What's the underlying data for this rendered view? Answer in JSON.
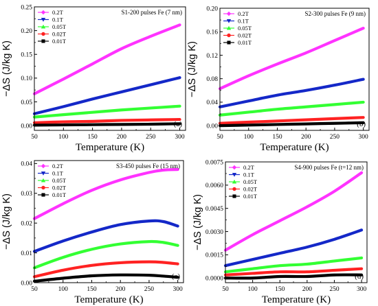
{
  "colors": {
    "0.2T": "#ff33ff",
    "0.1T": "#1428c8",
    "0.05T": "#33ff33",
    "0.02T": "#ff2222",
    "0.01T": "#000000"
  },
  "markers": {
    "0.2T": "diamond",
    "0.1T": "triangle-down",
    "0.05T": "triangle-up",
    "0.02T": "circle",
    "0.01T": "square"
  },
  "chart_data": [
    {
      "type": "line",
      "panel": "(a)",
      "annotation": "S1-200 pulses Fe (7 nm)",
      "xlabel": "Temperature (K)",
      "ylabel": "−ΔS (J/kg K)",
      "xlim": [
        50,
        310
      ],
      "ylim": [
        -0.01,
        0.25
      ],
      "xticks": [
        50,
        100,
        150,
        200,
        250,
        300
      ],
      "yticks": [
        0.0,
        0.05,
        0.1,
        0.15,
        0.2,
        0.25
      ],
      "ytick_labels": [
        "0.00",
        "0.05",
        "0.10",
        "0.15",
        "0.20",
        "0.25"
      ],
      "legend_position": "top-left",
      "x": [
        50,
        100,
        150,
        200,
        250,
        300
      ],
      "series": [
        {
          "name": "0.2T",
          "values": [
            0.067,
            0.098,
            0.13,
            0.162,
            0.188,
            0.212
          ]
        },
        {
          "name": "0.1T",
          "values": [
            0.025,
            0.04,
            0.056,
            0.071,
            0.086,
            0.101
          ]
        },
        {
          "name": "0.05T",
          "values": [
            0.018,
            0.023,
            0.028,
            0.033,
            0.037,
            0.041
          ]
        },
        {
          "name": "0.02T",
          "values": [
            0.006,
            0.008,
            0.009,
            0.011,
            0.012,
            0.013
          ]
        },
        {
          "name": "0.01T",
          "values": [
            0.001,
            0.0015,
            0.002,
            0.0025,
            0.003,
            0.004
          ]
        }
      ]
    },
    {
      "type": "line",
      "panel": "(b)",
      "annotation": "S2-300 pulses Fe (9 nm)",
      "xlabel": "Temperature (K)",
      "ylabel": "−ΔS (J/kg K)",
      "xlim": [
        50,
        310
      ],
      "ylim": [
        -0.008,
        0.2
      ],
      "xticks": [
        50,
        100,
        150,
        200,
        250,
        300
      ],
      "yticks": [
        0.0,
        0.04,
        0.08,
        0.12,
        0.16,
        0.2
      ],
      "ytick_labels": [
        "0.00",
        "0.04",
        "0.08",
        "0.12",
        "0.16",
        "0.20"
      ],
      "legend_position": "top-left",
      "x": [
        50,
        100,
        150,
        200,
        250,
        300
      ],
      "series": [
        {
          "name": "0.2T",
          "values": [
            0.063,
            0.085,
            0.105,
            0.124,
            0.145,
            0.166
          ]
        },
        {
          "name": "0.1T",
          "values": [
            0.032,
            0.042,
            0.052,
            0.06,
            0.069,
            0.079
          ]
        },
        {
          "name": "0.05T",
          "values": [
            0.018,
            0.023,
            0.028,
            0.032,
            0.036,
            0.04
          ]
        },
        {
          "name": "0.02T",
          "values": [
            0.004,
            0.006,
            0.008,
            0.01,
            0.012,
            0.014
          ]
        },
        {
          "name": "0.01T",
          "values": [
            0.0,
            0.001,
            0.002,
            0.003,
            0.004,
            0.005
          ]
        }
      ]
    },
    {
      "type": "line",
      "panel": "(c)",
      "annotation": "S3-450 pulses Fe (15 nm)",
      "xlabel": "Temperature (K)",
      "ylabel": "−ΔS (J/kg K)",
      "xlim": [
        50,
        310
      ],
      "ylim": [
        0.0,
        0.041
      ],
      "xticks": [
        50,
        100,
        150,
        200,
        250,
        300
      ],
      "yticks": [
        0.0,
        0.01,
        0.02,
        0.03,
        0.04
      ],
      "ytick_labels": [
        "0.00",
        "0.01",
        "0.02",
        "0.03",
        "0.04"
      ],
      "legend_position": "top-left",
      "x": [
        50,
        100,
        150,
        200,
        250,
        275,
        300
      ],
      "series": [
        {
          "name": "0.2T",
          "values": [
            0.0215,
            0.0265,
            0.031,
            0.0345,
            0.037,
            0.0378,
            0.038
          ]
        },
        {
          "name": "0.1T",
          "values": [
            0.0105,
            0.014,
            0.017,
            0.0195,
            0.0207,
            0.0205,
            0.019
          ]
        },
        {
          "name": "0.05T",
          "values": [
            0.005,
            0.0085,
            0.0112,
            0.013,
            0.0138,
            0.0135,
            0.0125
          ]
        },
        {
          "name": "0.02T",
          "values": [
            0.002,
            0.0042,
            0.0058,
            0.0067,
            0.007,
            0.0068,
            0.0063
          ]
        },
        {
          "name": "0.01T",
          "values": [
            0.0005,
            0.0015,
            0.0023,
            0.0026,
            0.0025,
            0.0022,
            0.0018
          ]
        }
      ]
    },
    {
      "type": "line",
      "panel": "(d)",
      "annotation": "S4-900 pulses Fe (t=12 nm)",
      "xlabel": "Temperature (K)",
      "ylabel": "−ΔS (J/kg K)",
      "xlim": [
        50,
        310
      ],
      "ylim": [
        -0.0003,
        0.0075
      ],
      "xticks": [
        50,
        100,
        150,
        200,
        250,
        300
      ],
      "yticks": [
        0.0,
        0.0015,
        0.003,
        0.0045,
        0.006,
        0.0075
      ],
      "ytick_labels": [
        "0.0000",
        "0.0015",
        "0.0030",
        "0.0045",
        "0.0060",
        "0.0075"
      ],
      "legend_position": "top-left",
      "x": [
        50,
        100,
        150,
        200,
        250,
        300
      ],
      "series": [
        {
          "name": "0.2T",
          "values": [
            0.0018,
            0.0028,
            0.0037,
            0.0046,
            0.0056,
            0.0068
          ]
        },
        {
          "name": "0.1T",
          "values": [
            0.0008,
            0.0012,
            0.0016,
            0.002,
            0.0025,
            0.0031
          ]
        },
        {
          "name": "0.05T",
          "values": [
            0.0004,
            0.0006,
            0.0008,
            0.0009,
            0.0011,
            0.0013
          ]
        },
        {
          "name": "0.02T",
          "values": [
            0.0002,
            0.0003,
            0.0004,
            0.0004,
            0.0005,
            0.0006
          ]
        },
        {
          "name": "0.01T",
          "values": [
            0.0,
            0.0,
            0.0001,
            0.0001,
            0.0002,
            0.0002
          ]
        }
      ]
    }
  ]
}
